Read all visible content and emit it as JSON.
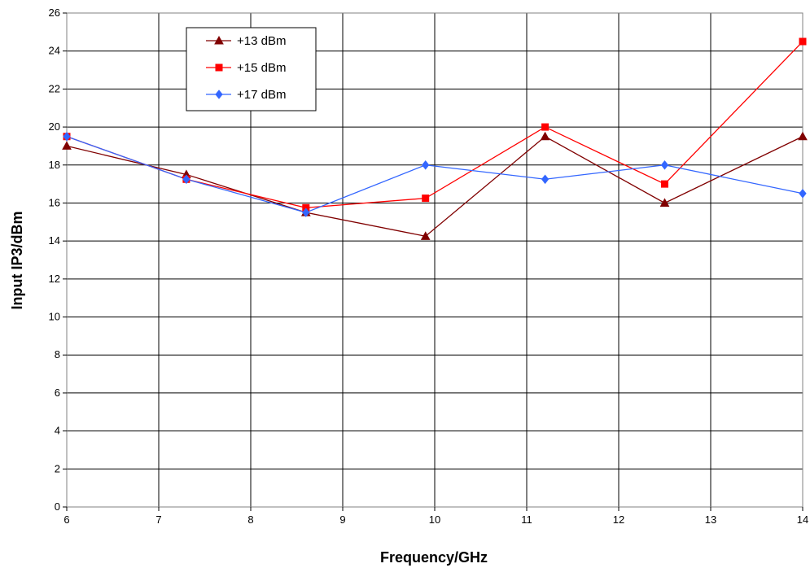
{
  "chart_data": {
    "type": "line",
    "title": "",
    "xlabel": "Frequency/GHz",
    "ylabel": "Input IP3/dBm",
    "xlim": [
      6,
      14
    ],
    "ylim": [
      0,
      26
    ],
    "x_ticks": [
      6,
      7,
      8,
      9,
      10,
      11,
      12,
      13,
      14
    ],
    "y_ticks": [
      0,
      2,
      4,
      6,
      8,
      10,
      12,
      14,
      16,
      18,
      20,
      22,
      24,
      26
    ],
    "grid": true,
    "legend_position": "top-left",
    "x": [
      6.0,
      7.3,
      8.6,
      9.9,
      11.2,
      12.5,
      14.0
    ],
    "series": [
      {
        "name": "+13 dBm",
        "color": "#800000",
        "marker": "triangle",
        "values": [
          19.0,
          17.5,
          15.5,
          14.25,
          19.5,
          16.0,
          19.5
        ]
      },
      {
        "name": "+15 dBm",
        "color": "#ff0000",
        "marker": "square",
        "values": [
          19.5,
          17.25,
          15.75,
          16.25,
          20.0,
          17.0,
          24.5
        ]
      },
      {
        "name": "+17 dBm",
        "color": "#3366ff",
        "marker": "diamond",
        "values": [
          19.5,
          17.25,
          15.5,
          18.0,
          17.25,
          18.0,
          16.5
        ]
      }
    ]
  }
}
